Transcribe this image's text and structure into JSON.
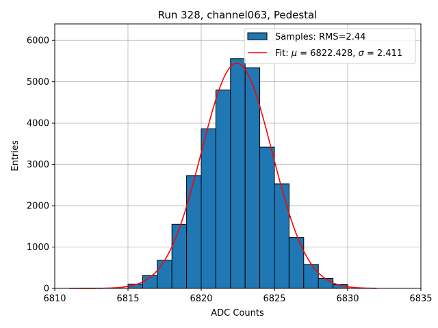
{
  "chart_data": {
    "type": "bar",
    "title": "Run 328, channel063, Pedestal",
    "xlabel": "ADC Counts",
    "ylabel": "Entries",
    "xlim": [
      6810,
      6835
    ],
    "ylim": [
      0,
      6400
    ],
    "grid": true,
    "legend_position": "top-right",
    "x_ticks": [
      6810,
      6815,
      6820,
      6825,
      6830,
      6835
    ],
    "y_ticks": [
      0,
      1000,
      2000,
      3000,
      4000,
      5000,
      6000
    ],
    "bin_width": 1,
    "histogram": {
      "name": "Samples: RMS=2.44",
      "color": "#1f77b4",
      "bins": [
        {
          "x": 6815,
          "value": 100
        },
        {
          "x": 6816,
          "value": 310
        },
        {
          "x": 6817,
          "value": 680
        },
        {
          "x": 6818,
          "value": 1550
        },
        {
          "x": 6819,
          "value": 2730
        },
        {
          "x": 6820,
          "value": 3860
        },
        {
          "x": 6821,
          "value": 4800
        },
        {
          "x": 6822,
          "value": 5560
        },
        {
          "x": 6823,
          "value": 5340
        },
        {
          "x": 6824,
          "value": 3420
        },
        {
          "x": 6825,
          "value": 2530
        },
        {
          "x": 6826,
          "value": 1230
        },
        {
          "x": 6827,
          "value": 580
        },
        {
          "x": 6828,
          "value": 240
        },
        {
          "x": 6829,
          "value": 90
        }
      ]
    },
    "fit": {
      "type": "gaussian",
      "mu": 6822.428,
      "sigma": 2.411,
      "amplitude": 5450,
      "x_range": [
        6811,
        6832
      ],
      "color": "#ff0000",
      "label_prefix": "Fit: ",
      "label_mu": "μ",
      "label_mu_value": " = 6822.428, ",
      "label_sigma": "σ",
      "label_sigma_value": " = 2.411"
    }
  }
}
